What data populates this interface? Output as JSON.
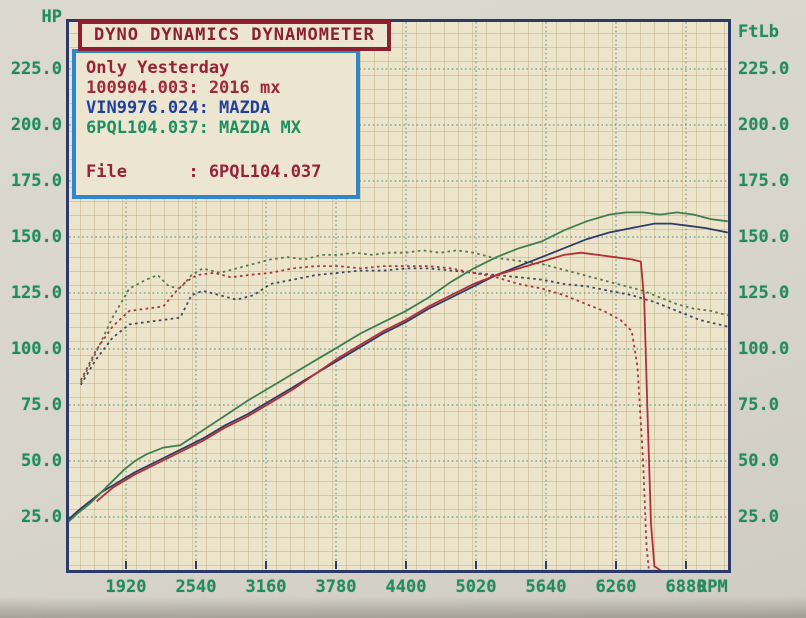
{
  "title_bar": {
    "text": "DYNO DYNAMICS DYNAMOMETER",
    "color": "#8e1f30"
  },
  "info_box": {
    "lines": [
      {
        "text": "Only Yesterday",
        "color": "#9b2138"
      },
      {
        "text": "100904.003: 2016 mx",
        "color": "#a02a3a"
      },
      {
        "text": "VIN9976.024: MAZDA",
        "color": "#21409e"
      },
      {
        "text": "6PQL104.037: MAZDA MX",
        "color": "#1d8f62"
      }
    ],
    "file_line": {
      "text": "File      : 6PQL104.037",
      "color": "#9b2138"
    }
  },
  "labels": {
    "hp": "HP",
    "ftlb": "FtLb",
    "rpm": "RPM"
  },
  "colors": {
    "axis_text": "#1f8e5c",
    "plot_background": "#ece4cb",
    "minor_grid": "#d4c69c",
    "major_grid": "#679b94",
    "plot_border": "#2b3a68",
    "title_red": "#8e1f30",
    "info_border_blue": "#2f86cf"
  },
  "chart_data": {
    "type": "line",
    "title": "DYNO DYNAMICS DYNAMOMETER",
    "x_axis": {
      "label": "RPM",
      "min": 1389,
      "max": 7260,
      "ticks": [
        1920,
        2540,
        3160,
        3780,
        4400,
        5020,
        5640,
        6260,
        6880
      ]
    },
    "y_axis_left": {
      "label": "HP",
      "min": 0,
      "max": 247,
      "ticks": [
        25,
        50,
        75,
        100,
        125,
        150,
        175,
        200,
        225
      ]
    },
    "y_axis_right": {
      "label": "FtLb",
      "min": 0,
      "max": 247,
      "ticks": [
        25,
        50,
        75,
        100,
        125,
        150,
        175,
        200,
        225
      ]
    },
    "grid": true,
    "legend_position": "top-left-info-box",
    "series": [
      {
        "id": "torque-vin9976",
        "name": "VIN9976.024 MAZDA torque (FtLb)",
        "color": "#3e4a64",
        "line": "dotted",
        "points": [
          [
            1520,
            84
          ],
          [
            1650,
            95
          ],
          [
            1800,
            105
          ],
          [
            1950,
            111
          ],
          [
            2100,
            112
          ],
          [
            2250,
            113
          ],
          [
            2400,
            114
          ],
          [
            2500,
            124
          ],
          [
            2600,
            126
          ],
          [
            2750,
            124
          ],
          [
            2900,
            122
          ],
          [
            3050,
            124
          ],
          [
            3200,
            129
          ],
          [
            3400,
            131
          ],
          [
            3600,
            133
          ],
          [
            3800,
            134
          ],
          [
            4000,
            135
          ],
          [
            4200,
            135
          ],
          [
            4400,
            136
          ],
          [
            4600,
            136
          ],
          [
            4800,
            135
          ],
          [
            5000,
            134
          ],
          [
            5200,
            133
          ],
          [
            5400,
            132
          ],
          [
            5600,
            131
          ],
          [
            5800,
            129
          ],
          [
            6000,
            128
          ],
          [
            6200,
            126
          ],
          [
            6400,
            124
          ],
          [
            6600,
            121
          ],
          [
            6800,
            117
          ],
          [
            7000,
            113
          ],
          [
            7250,
            110
          ]
        ]
      },
      {
        "id": "torque-100904",
        "name": "100904.003 2016 mx torque (FtLb)",
        "color": "#a83640",
        "line": "dotted",
        "points": [
          [
            1520,
            86
          ],
          [
            1650,
            99
          ],
          [
            1800,
            110
          ],
          [
            1950,
            117
          ],
          [
            2100,
            118
          ],
          [
            2250,
            119
          ],
          [
            2350,
            125
          ],
          [
            2450,
            130
          ],
          [
            2550,
            133
          ],
          [
            2700,
            134
          ],
          [
            2850,
            132
          ],
          [
            3000,
            133
          ],
          [
            3200,
            134
          ],
          [
            3400,
            136
          ],
          [
            3600,
            137
          ],
          [
            3800,
            137
          ],
          [
            4000,
            136
          ],
          [
            4200,
            137
          ],
          [
            4400,
            137
          ],
          [
            4600,
            137
          ],
          [
            4800,
            136
          ],
          [
            5000,
            134
          ],
          [
            5200,
            132
          ],
          [
            5400,
            129
          ],
          [
            5600,
            127
          ],
          [
            5800,
            124
          ],
          [
            6000,
            120
          ],
          [
            6150,
            117
          ],
          [
            6300,
            113
          ],
          [
            6400,
            108
          ],
          [
            6450,
            92
          ],
          [
            6500,
            50
          ],
          [
            6530,
            12
          ],
          [
            6550,
            2
          ]
        ]
      },
      {
        "id": "torque-6pql104",
        "name": "6PQL104.037 MAZDA MX torque (FtLb)",
        "color": "#567a4c",
        "line": "dotted",
        "points": [
          [
            1520,
            85
          ],
          [
            1650,
            98
          ],
          [
            1800,
            114
          ],
          [
            1950,
            127
          ],
          [
            2100,
            131
          ],
          [
            2200,
            133
          ],
          [
            2300,
            128
          ],
          [
            2400,
            127
          ],
          [
            2500,
            133
          ],
          [
            2600,
            136
          ],
          [
            2750,
            134
          ],
          [
            2900,
            136
          ],
          [
            3050,
            138
          ],
          [
            3200,
            140
          ],
          [
            3350,
            141
          ],
          [
            3500,
            140
          ],
          [
            3650,
            142
          ],
          [
            3800,
            142
          ],
          [
            3950,
            143
          ],
          [
            4100,
            142
          ],
          [
            4250,
            143
          ],
          [
            4400,
            143
          ],
          [
            4550,
            144
          ],
          [
            4700,
            143
          ],
          [
            4850,
            144
          ],
          [
            5000,
            143
          ],
          [
            5150,
            141
          ],
          [
            5300,
            140
          ],
          [
            5450,
            139
          ],
          [
            5600,
            138
          ],
          [
            5750,
            136
          ],
          [
            5900,
            134
          ],
          [
            6050,
            132
          ],
          [
            6200,
            130
          ],
          [
            6350,
            128
          ],
          [
            6500,
            126
          ],
          [
            6650,
            123
          ],
          [
            6800,
            120
          ],
          [
            6950,
            118
          ],
          [
            7100,
            117
          ],
          [
            7250,
            115
          ]
        ]
      },
      {
        "id": "power-vin9976",
        "name": "VIN9976.024 MAZDA power (HP)",
        "color": "#2e3c68",
        "line": "solid",
        "points": [
          [
            1390,
            23
          ],
          [
            1500,
            28
          ],
          [
            1600,
            32
          ],
          [
            1700,
            36
          ],
          [
            1800,
            39
          ],
          [
            1900,
            42
          ],
          [
            2000,
            45
          ],
          [
            2200,
            50
          ],
          [
            2400,
            55
          ],
          [
            2600,
            60
          ],
          [
            2800,
            66
          ],
          [
            3000,
            71
          ],
          [
            3200,
            77
          ],
          [
            3400,
            83
          ],
          [
            3600,
            89
          ],
          [
            3800,
            95
          ],
          [
            4000,
            101
          ],
          [
            4200,
            107
          ],
          [
            4400,
            112
          ],
          [
            4600,
            118
          ],
          [
            4800,
            123
          ],
          [
            5000,
            128
          ],
          [
            5200,
            133
          ],
          [
            5400,
            137
          ],
          [
            5600,
            141
          ],
          [
            5800,
            145
          ],
          [
            6000,
            149
          ],
          [
            6200,
            152
          ],
          [
            6400,
            154
          ],
          [
            6600,
            156
          ],
          [
            6750,
            156
          ],
          [
            6900,
            155
          ],
          [
            7050,
            154
          ],
          [
            7250,
            152
          ]
        ]
      },
      {
        "id": "power-6pql104",
        "name": "6PQL104.037 MAZDA MX power (HP)",
        "color": "#3f7e55",
        "line": "solid",
        "points": [
          [
            1390,
            22
          ],
          [
            1500,
            27
          ],
          [
            1600,
            31
          ],
          [
            1700,
            36
          ],
          [
            1800,
            41
          ],
          [
            1900,
            46
          ],
          [
            2000,
            50
          ],
          [
            2100,
            53
          ],
          [
            2250,
            56
          ],
          [
            2400,
            57
          ],
          [
            2550,
            62
          ],
          [
            2700,
            67
          ],
          [
            2850,
            72
          ],
          [
            3000,
            77
          ],
          [
            3200,
            83
          ],
          [
            3400,
            89
          ],
          [
            3600,
            95
          ],
          [
            3800,
            101
          ],
          [
            4000,
            107
          ],
          [
            4200,
            112
          ],
          [
            4400,
            117
          ],
          [
            4600,
            123
          ],
          [
            4800,
            130
          ],
          [
            5000,
            136
          ],
          [
            5200,
            141
          ],
          [
            5400,
            145
          ],
          [
            5600,
            148
          ],
          [
            5800,
            153
          ],
          [
            6000,
            157
          ],
          [
            6200,
            160
          ],
          [
            6350,
            161
          ],
          [
            6500,
            161
          ],
          [
            6650,
            160
          ],
          [
            6800,
            161
          ],
          [
            6950,
            160
          ],
          [
            7100,
            158
          ],
          [
            7250,
            157
          ]
        ]
      },
      {
        "id": "power-100904",
        "name": "100904.003 2016 mx power (HP)",
        "color": "#b52e33",
        "line": "solid",
        "points": [
          [
            1660,
            32
          ],
          [
            1800,
            38
          ],
          [
            2000,
            44
          ],
          [
            2200,
            49
          ],
          [
            2400,
            54
          ],
          [
            2600,
            59
          ],
          [
            2800,
            65
          ],
          [
            3000,
            70
          ],
          [
            3200,
            76
          ],
          [
            3400,
            82
          ],
          [
            3600,
            89
          ],
          [
            3800,
            96
          ],
          [
            4000,
            102
          ],
          [
            4200,
            108
          ],
          [
            4400,
            113
          ],
          [
            4600,
            119
          ],
          [
            4800,
            124
          ],
          [
            5000,
            129
          ],
          [
            5200,
            133
          ],
          [
            5400,
            136
          ],
          [
            5600,
            139
          ],
          [
            5800,
            142
          ],
          [
            5950,
            143
          ],
          [
            6100,
            142
          ],
          [
            6250,
            141
          ],
          [
            6400,
            140
          ],
          [
            6480,
            139
          ],
          [
            6510,
            122
          ],
          [
            6540,
            70
          ],
          [
            6570,
            22
          ],
          [
            6600,
            3
          ],
          [
            6660,
            1
          ],
          [
            5130,
            1
          ]
        ]
      }
    ]
  }
}
